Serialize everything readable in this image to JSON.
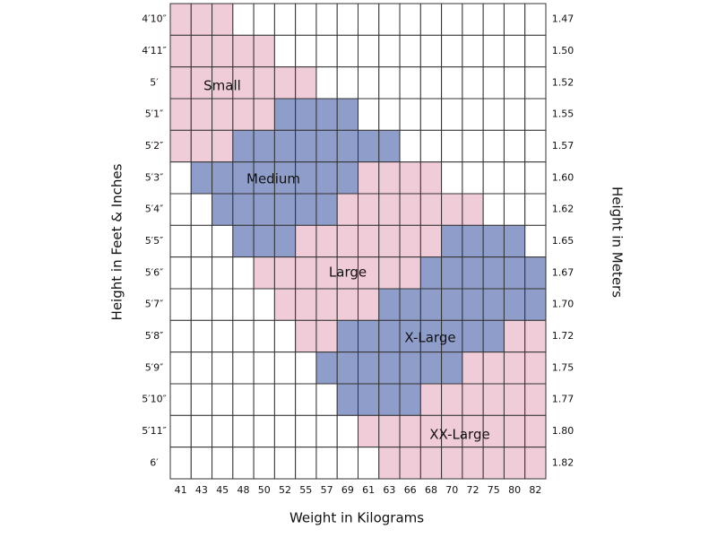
{
  "axis_titles": {
    "left": "Height in Feet & Inches",
    "right": "Height in Meters",
    "bottom": "Weight in Kilograms"
  },
  "sizes": [
    {
      "name": "Small",
      "color": "#efccd8"
    },
    {
      "name": "Medium",
      "color": "#8f9dca"
    },
    {
      "name": "Large",
      "color": "#efccd8"
    },
    {
      "name": "X-Large",
      "color": "#8f9dca"
    },
    {
      "name": "XX-Large",
      "color": "#efccd8"
    }
  ],
  "weights": [
    "41",
    "43",
    "45",
    "48",
    "50",
    "52",
    "55",
    "57",
    "69",
    "61",
    "63",
    "66",
    "68",
    "70",
    "72",
    "75",
    "80",
    "82"
  ],
  "rows": [
    {
      "ft": "4′10″",
      "m": "1.47",
      "cells": [
        0,
        0,
        0,
        null,
        null,
        null,
        null,
        null,
        null,
        null,
        null,
        null,
        null,
        null,
        null,
        null,
        null,
        null
      ]
    },
    {
      "ft": "4′11″",
      "m": "1.50",
      "cells": [
        0,
        0,
        0,
        0,
        0,
        null,
        null,
        null,
        null,
        null,
        null,
        null,
        null,
        null,
        null,
        null,
        null,
        null
      ]
    },
    {
      "ft": "5′",
      "m": "1.52",
      "cells": [
        0,
        0,
        0,
        0,
        0,
        0,
        0,
        null,
        null,
        null,
        null,
        null,
        null,
        null,
        null,
        null,
        null,
        null
      ]
    },
    {
      "ft": "5′1″",
      "m": "1.55",
      "cells": [
        0,
        0,
        0,
        0,
        0,
        1,
        1,
        1,
        1,
        null,
        null,
        null,
        null,
        null,
        null,
        null,
        null,
        null
      ]
    },
    {
      "ft": "5′2″",
      "m": "1.57",
      "cells": [
        0,
        0,
        0,
        1,
        1,
        1,
        1,
        1,
        1,
        1,
        1,
        null,
        null,
        null,
        null,
        null,
        null,
        null
      ]
    },
    {
      "ft": "5′3″",
      "m": "1.60",
      "cells": [
        null,
        1,
        1,
        1,
        1,
        1,
        1,
        1,
        1,
        2,
        2,
        2,
        2,
        null,
        null,
        null,
        null,
        null
      ]
    },
    {
      "ft": "5′4″",
      "m": "1.62",
      "cells": [
        null,
        null,
        1,
        1,
        1,
        1,
        1,
        1,
        2,
        2,
        2,
        2,
        2,
        2,
        2,
        null,
        null,
        null
      ]
    },
    {
      "ft": "5′5″",
      "m": "1.65",
      "cells": [
        null,
        null,
        null,
        1,
        1,
        1,
        2,
        2,
        2,
        2,
        2,
        2,
        2,
        3,
        3,
        3,
        3,
        null
      ]
    },
    {
      "ft": "5′6″",
      "m": "1.67",
      "cells": [
        null,
        null,
        null,
        null,
        2,
        2,
        2,
        2,
        2,
        2,
        2,
        2,
        3,
        3,
        3,
        3,
        3,
        3
      ]
    },
    {
      "ft": "5′7″",
      "m": "1.70",
      "cells": [
        null,
        null,
        null,
        null,
        null,
        2,
        2,
        2,
        2,
        2,
        3,
        3,
        3,
        3,
        3,
        3,
        3,
        3
      ]
    },
    {
      "ft": "5′8″",
      "m": "1.72",
      "cells": [
        null,
        null,
        null,
        null,
        null,
        null,
        2,
        2,
        3,
        3,
        3,
        3,
        3,
        3,
        3,
        3,
        4,
        4
      ]
    },
    {
      "ft": "5′9″",
      "m": "1.75",
      "cells": [
        null,
        null,
        null,
        null,
        null,
        null,
        null,
        3,
        3,
        3,
        3,
        3,
        3,
        3,
        4,
        4,
        4,
        4
      ]
    },
    {
      "ft": "5′10″",
      "m": "1.77",
      "cells": [
        null,
        null,
        null,
        null,
        null,
        null,
        null,
        null,
        3,
        3,
        3,
        3,
        4,
        4,
        4,
        4,
        4,
        4
      ]
    },
    {
      "ft": "5′11″",
      "m": "1.80",
      "cells": [
        null,
        null,
        null,
        null,
        null,
        null,
        null,
        null,
        null,
        4,
        4,
        4,
        4,
        4,
        4,
        4,
        4,
        4
      ]
    },
    {
      "ft": "6′",
      "m": "1.82",
      "cells": [
        null,
        null,
        null,
        null,
        null,
        null,
        null,
        null,
        null,
        null,
        4,
        4,
        4,
        4,
        4,
        4,
        4,
        4
      ]
    }
  ]
}
